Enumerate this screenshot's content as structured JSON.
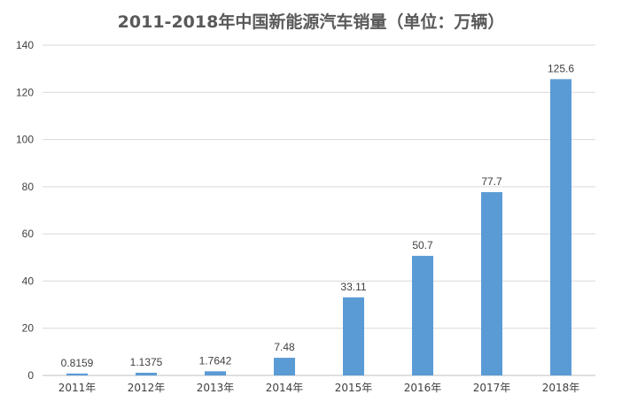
{
  "chart_data": {
    "type": "bar",
    "title": "2011-2018年中国新能源汽车销量（单位：万辆）",
    "categories": [
      "2011年",
      "2012年",
      "2013年",
      "2014年",
      "2015年",
      "2016年",
      "2017年",
      "2018年"
    ],
    "values": [
      0.8159,
      1.1375,
      1.7642,
      7.48,
      33.11,
      50.7,
      77.7,
      125.6
    ],
    "value_labels": [
      "0.8159",
      "1.1375",
      "1.7642",
      "7.48",
      "33.11",
      "50.7",
      "77.7",
      "125.6"
    ],
    "xlabel": "",
    "ylabel": "",
    "ylim": [
      0,
      140
    ],
    "yticks": [
      "0",
      "20",
      "40",
      "60",
      "80",
      "100",
      "120",
      "140"
    ],
    "grid": true,
    "legend": "none",
    "bar_color": "#5B9BD5"
  }
}
